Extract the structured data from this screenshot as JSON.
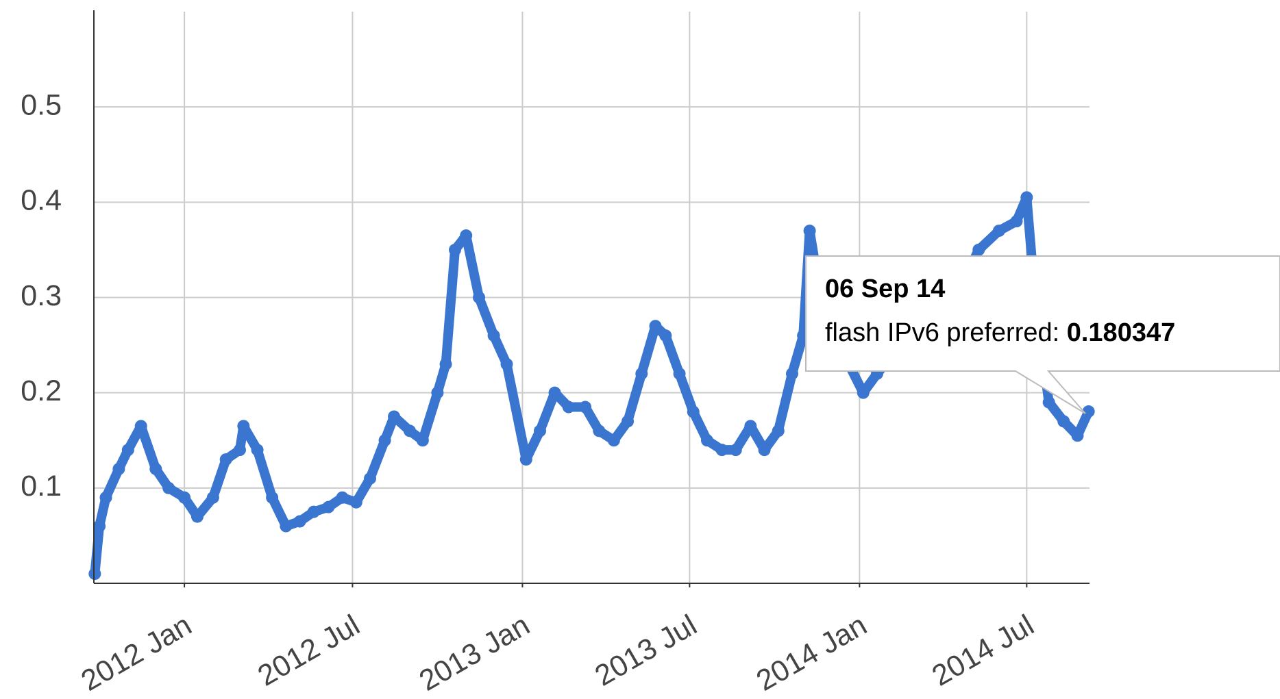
{
  "chart_data": {
    "type": "line",
    "series": [
      {
        "name": "flash IPv6 preferred",
        "color": "#3a75d0",
        "values": [
          0.01,
          0.06,
          0.09,
          0.12,
          0.14,
          0.165,
          0.12,
          0.1,
          0.09,
          0.07,
          0.09,
          0.13,
          0.14,
          0.165,
          0.14,
          0.09,
          0.06,
          0.065,
          0.075,
          0.08,
          0.09,
          0.085,
          0.11,
          0.15,
          0.175,
          0.16,
          0.15,
          0.2,
          0.23,
          0.35,
          0.365,
          0.3,
          0.26,
          0.23,
          0.13,
          0.16,
          0.2,
          0.185,
          0.185,
          0.16,
          0.15,
          0.17,
          0.22,
          0.27,
          0.26,
          0.22,
          0.18,
          0.15,
          0.14,
          0.14,
          0.165,
          0.14,
          0.16,
          0.22,
          0.26,
          0.37,
          0.3,
          0.25,
          0.2,
          0.22,
          0.25,
          0.28,
          0.3,
          0.35,
          0.37,
          0.38,
          0.405,
          0.3,
          0.19,
          0.17,
          0.155,
          0.180347
        ]
      }
    ],
    "x": [
      "2011-09-26",
      "2011-10-01",
      "2011-10-08",
      "2011-10-22",
      "2011-11-01",
      "2011-11-15",
      "2011-12-01",
      "2011-12-15",
      "2012-01-01",
      "2012-01-15",
      "2012-02-01",
      "2012-02-15",
      "2012-03-01",
      "2012-03-05",
      "2012-03-20",
      "2012-04-05",
      "2012-04-20",
      "2012-05-05",
      "2012-05-20",
      "2012-06-05",
      "2012-06-20",
      "2012-07-05",
      "2012-07-20",
      "2012-08-05",
      "2012-08-15",
      "2012-09-01",
      "2012-09-15",
      "2012-10-01",
      "2012-10-10",
      "2012-10-20",
      "2012-11-01",
      "2012-11-15",
      "2012-12-01",
      "2012-12-15",
      "2013-01-05",
      "2013-01-20",
      "2013-02-05",
      "2013-02-20",
      "2013-03-10",
      "2013-03-25",
      "2013-04-10",
      "2013-04-25",
      "2013-05-10",
      "2013-05-25",
      "2013-06-05",
      "2013-06-20",
      "2013-07-05",
      "2013-07-20",
      "2013-08-05",
      "2013-08-20",
      "2013-09-05",
      "2013-09-20",
      "2013-10-05",
      "2013-10-20",
      "2013-11-01",
      "2013-11-08",
      "2013-11-20",
      "2013-12-10",
      "2014-01-05",
      "2014-01-20",
      "2014-02-15",
      "2014-03-15",
      "2014-04-15",
      "2014-05-10",
      "2014-06-01",
      "2014-06-20",
      "2014-07-01",
      "2014-07-10",
      "2014-07-25",
      "2014-08-10",
      "2014-08-25",
      "2014-09-06"
    ],
    "xlim": [
      "2011-09-25",
      "2014-09-07"
    ],
    "xticks": [
      {
        "value": "2012-01-01",
        "label": "2012 Jan"
      },
      {
        "value": "2012-07-01",
        "label": "2012 Jul"
      },
      {
        "value": "2013-01-01",
        "label": "2013 Jan"
      },
      {
        "value": "2013-07-01",
        "label": "2013 Jul"
      },
      {
        "value": "2014-01-01",
        "label": "2014 Jan"
      },
      {
        "value": "2014-07-01",
        "label": "2014 Jul"
      }
    ],
    "ylim": [
      0,
      0.6
    ],
    "yticks": [
      0.1,
      0.2,
      0.3,
      0.4,
      0.5
    ],
    "grid": true,
    "tooltip": {
      "date": "06 Sep 14",
      "label": "flash IPv6 preferred:"
    }
  }
}
